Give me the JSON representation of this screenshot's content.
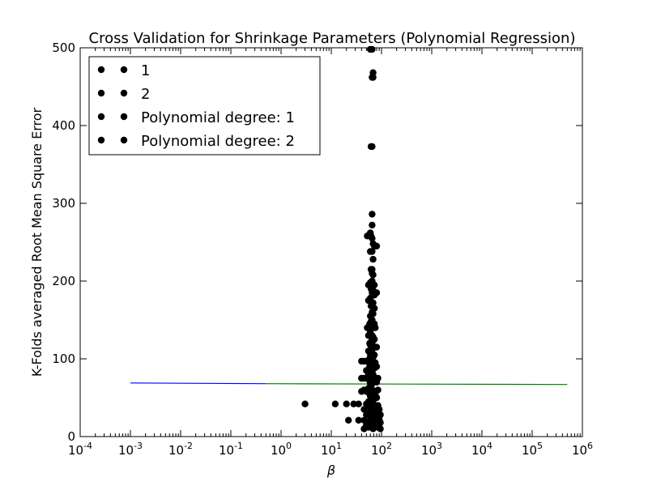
{
  "chart_data": {
    "type": "scatter",
    "title": "Cross Validation for Shrinkage Parameters (Polynomial Regression)",
    "xlabel": "β",
    "ylabel": "K-Folds averaged Root Mean Square Error",
    "x_scale": "log",
    "xlim": [
      0.0001,
      1000000
    ],
    "ylim": [
      0,
      500
    ],
    "x_ticks": [
      {
        "base": "10",
        "exp": "-4",
        "value": 0.0001
      },
      {
        "base": "10",
        "exp": "-3",
        "value": 0.001
      },
      {
        "base": "10",
        "exp": "-2",
        "value": 0.01
      },
      {
        "base": "10",
        "exp": "-1",
        "value": 0.1
      },
      {
        "base": "10",
        "exp": "0",
        "value": 1
      },
      {
        "base": "10",
        "exp": "1",
        "value": 10
      },
      {
        "base": "10",
        "exp": "2",
        "value": 100
      },
      {
        "base": "10",
        "exp": "3",
        "value": 1000
      },
      {
        "base": "10",
        "exp": "4",
        "value": 10000
      },
      {
        "base": "10",
        "exp": "5",
        "value": 100000
      },
      {
        "base": "10",
        "exp": "6",
        "value": 1000000
      }
    ],
    "y_ticks": [
      0,
      100,
      200,
      300,
      400,
      500
    ],
    "legend_position": "upper-left",
    "legend": [
      "1",
      "2",
      "Polynomial degree: 1",
      "Polynomial degree: 2"
    ],
    "lines": [
      {
        "color": "#0000ff",
        "x": [
          0.001,
          0.5
        ],
        "y": [
          69,
          68
        ]
      },
      {
        "color": "#008000",
        "x": [
          0.5,
          500000
        ],
        "y": [
          68,
          67
        ]
      }
    ],
    "points": [
      [
        3,
        42
      ],
      [
        12,
        42
      ],
      [
        20,
        42
      ],
      [
        22,
        21
      ],
      [
        28,
        42
      ],
      [
        35,
        21
      ],
      [
        35,
        42
      ],
      [
        40,
        97
      ],
      [
        40,
        75
      ],
      [
        40,
        58
      ],
      [
        45,
        97
      ],
      [
        45,
        75
      ],
      [
        45,
        60
      ],
      [
        45,
        35
      ],
      [
        45,
        21
      ],
      [
        45,
        10
      ],
      [
        50,
        97
      ],
      [
        50,
        85
      ],
      [
        50,
        75
      ],
      [
        50,
        58
      ],
      [
        50,
        42
      ],
      [
        50,
        28
      ],
      [
        50,
        15
      ],
      [
        52,
        258
      ],
      [
        52,
        140
      ],
      [
        55,
        195
      ],
      [
        55,
        175
      ],
      [
        55,
        130
      ],
      [
        55,
        110
      ],
      [
        55,
        97
      ],
      [
        55,
        80
      ],
      [
        55,
        62
      ],
      [
        55,
        45
      ],
      [
        55,
        30
      ],
      [
        55,
        12
      ],
      [
        58,
        260
      ],
      [
        58,
        145
      ],
      [
        58,
        120
      ],
      [
        58,
        100
      ],
      [
        58,
        90
      ],
      [
        58,
        72
      ],
      [
        58,
        55
      ],
      [
        58,
        38
      ],
      [
        58,
        20
      ],
      [
        60,
        498
      ],
      [
        60,
        262
      ],
      [
        60,
        238
      ],
      [
        60,
        198
      ],
      [
        60,
        178
      ],
      [
        60,
        155
      ],
      [
        60,
        135
      ],
      [
        60,
        118
      ],
      [
        60,
        105
      ],
      [
        60,
        92
      ],
      [
        60,
        82
      ],
      [
        60,
        68
      ],
      [
        60,
        52
      ],
      [
        60,
        40
      ],
      [
        60,
        25
      ],
      [
        60,
        14
      ],
      [
        62,
        373
      ],
      [
        62,
        258
      ],
      [
        62,
        215
      ],
      [
        62,
        190
      ],
      [
        62,
        168
      ],
      [
        62,
        148
      ],
      [
        62,
        128
      ],
      [
        62,
        112
      ],
      [
        62,
        98
      ],
      [
        62,
        86
      ],
      [
        62,
        74
      ],
      [
        62,
        63
      ],
      [
        62,
        48
      ],
      [
        62,
        33
      ],
      [
        62,
        18
      ],
      [
        65,
        498
      ],
      [
        65,
        462
      ],
      [
        65,
        373
      ],
      [
        65,
        286
      ],
      [
        65,
        272
      ],
      [
        65,
        255
      ],
      [
        65,
        238
      ],
      [
        65,
        215
      ],
      [
        65,
        210
      ],
      [
        65,
        200
      ],
      [
        65,
        185
      ],
      [
        65,
        170
      ],
      [
        65,
        160
      ],
      [
        65,
        150
      ],
      [
        65,
        140
      ],
      [
        65,
        130
      ],
      [
        65,
        120
      ],
      [
        65,
        108
      ],
      [
        65,
        100
      ],
      [
        65,
        92
      ],
      [
        65,
        84
      ],
      [
        65,
        76
      ],
      [
        65,
        68
      ],
      [
        65,
        60
      ],
      [
        65,
        52
      ],
      [
        65,
        44
      ],
      [
        65,
        36
      ],
      [
        65,
        28
      ],
      [
        65,
        20
      ],
      [
        65,
        12
      ],
      [
        68,
        468
      ],
      [
        68,
        462
      ],
      [
        68,
        248
      ],
      [
        68,
        228
      ],
      [
        68,
        208
      ],
      [
        68,
        188
      ],
      [
        68,
        172
      ],
      [
        68,
        158
      ],
      [
        68,
        142
      ],
      [
        68,
        128
      ],
      [
        68,
        114
      ],
      [
        68,
        102
      ],
      [
        68,
        90
      ],
      [
        68,
        80
      ],
      [
        68,
        70
      ],
      [
        68,
        58
      ],
      [
        68,
        46
      ],
      [
        68,
        34
      ],
      [
        68,
        22
      ],
      [
        68,
        10
      ],
      [
        72,
        245
      ],
      [
        72,
        195
      ],
      [
        72,
        182
      ],
      [
        72,
        165
      ],
      [
        72,
        145
      ],
      [
        72,
        125
      ],
      [
        72,
        105
      ],
      [
        72,
        88
      ],
      [
        72,
        72
      ],
      [
        72,
        55
      ],
      [
        72,
        38
      ],
      [
        72,
        22
      ],
      [
        72,
        12
      ],
      [
        75,
        245
      ],
      [
        75,
        185
      ],
      [
        75,
        140
      ],
      [
        75,
        115
      ],
      [
        75,
        95
      ],
      [
        75,
        75
      ],
      [
        75,
        55
      ],
      [
        75,
        35
      ],
      [
        75,
        18
      ],
      [
        80,
        245
      ],
      [
        80,
        185
      ],
      [
        80,
        115
      ],
      [
        80,
        90
      ],
      [
        80,
        70
      ],
      [
        80,
        50
      ],
      [
        80,
        30
      ],
      [
        80,
        15
      ],
      [
        85,
        75
      ],
      [
        85,
        60
      ],
      [
        85,
        40
      ],
      [
        85,
        25
      ],
      [
        85,
        12
      ],
      [
        90,
        35
      ],
      [
        90,
        22
      ],
      [
        90,
        12
      ],
      [
        95,
        28
      ],
      [
        95,
        18
      ],
      [
        95,
        10
      ]
    ]
  }
}
